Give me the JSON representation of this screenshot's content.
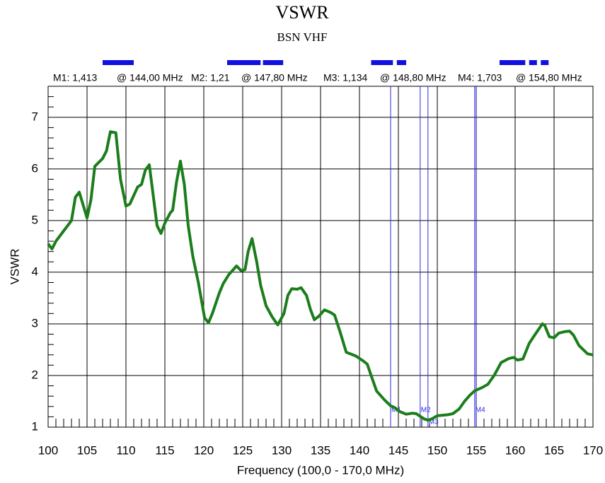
{
  "chart_data": {
    "type": "line",
    "title": "VSWR",
    "subtitle": "BSN  VHF",
    "x_label": "Frequency (100,0 - 170,0 MHz)",
    "y_label": "VSWR",
    "xlim": [
      100,
      170
    ],
    "ylim": [
      1,
      7.6
    ],
    "xticks": [
      100,
      105,
      110,
      115,
      120,
      125,
      130,
      135,
      140,
      145,
      150,
      155,
      160,
      165,
      170
    ],
    "yticks": [
      1,
      2,
      3,
      4,
      5,
      6,
      7
    ],
    "grid": true,
    "bands": [
      [
        107,
        111
      ],
      [
        123,
        127.3
      ],
      [
        127.6,
        130.2
      ],
      [
        141.5,
        144.3
      ],
      [
        144.8,
        146
      ],
      [
        158,
        161.3
      ],
      [
        161.8,
        162.8
      ],
      [
        163.3,
        164.3
      ]
    ],
    "band_color": "#1010e0",
    "marker_color": "#2a2ae0",
    "markers": [
      {
        "name": "M1",
        "label": "M1: 1,413",
        "freq_label": "@ 144,00 MHz",
        "x": 144,
        "value": 1.413
      },
      {
        "name": "M2",
        "label": "M2: 1,21",
        "freq_label": "@ 147,80 MHz",
        "x": 147.8,
        "value": 1.21
      },
      {
        "name": "M3",
        "label": "M3: 1,134",
        "freq_label": "@ 148,80 MHz",
        "x": 148.8,
        "value": 1.134
      },
      {
        "name": "M4",
        "label": "M4: 1,703",
        "freq_label": "@ 154,80 MHz",
        "x": 154.8,
        "value": 1.703
      }
    ],
    "series": [
      {
        "name": "VSWR",
        "color": "#1b7d1b",
        "x": [
          100,
          100.5,
          101,
          102,
          103,
          103.5,
          104,
          105,
          105.5,
          106,
          107,
          107.5,
          108,
          108.7,
          109.3,
          110,
          110.5,
          111.5,
          112,
          112.5,
          113,
          114,
          114.5,
          115,
          115.7,
          116,
          116.5,
          117,
          117.5,
          118,
          118.6,
          119.3,
          120.1,
          120.6,
          121.1,
          122,
          122.5,
          123.2,
          124.2,
          124.8,
          125.3,
          125.7,
          126.2,
          126.8,
          127.3,
          128,
          128.8,
          129.5,
          130.3,
          130.8,
          131.3,
          132,
          132.5,
          133.2,
          133.7,
          134.2,
          134.8,
          135.5,
          136.3,
          136.8,
          137.5,
          138.3,
          139.5,
          140.5,
          141,
          141.5,
          142.2,
          143.2,
          144,
          144.5,
          145.2,
          146,
          146.8,
          147.3,
          147.8,
          148.3,
          148.8,
          149.3,
          150,
          151.3,
          152,
          152.8,
          153.5,
          154.2,
          154.8,
          155.8,
          156.5,
          157.3,
          158.2,
          159.2,
          159.8,
          160.3,
          161,
          161.8,
          162.5,
          163.5,
          163.8,
          164.4,
          165,
          165.6,
          166.4,
          167,
          167.5,
          168.2,
          169.3,
          170
        ],
        "values": [
          4.55,
          4.45,
          4.6,
          4.8,
          5.0,
          5.45,
          5.55,
          5.05,
          5.4,
          6.05,
          6.2,
          6.35,
          6.72,
          6.7,
          5.8,
          5.28,
          5.32,
          5.65,
          5.7,
          5.98,
          6.08,
          4.9,
          4.75,
          4.95,
          5.15,
          5.2,
          5.75,
          6.15,
          5.7,
          4.9,
          4.3,
          3.8,
          3.12,
          3.02,
          3.2,
          3.6,
          3.78,
          3.95,
          4.12,
          4.03,
          4.05,
          4.4,
          4.65,
          4.2,
          3.75,
          3.35,
          3.13,
          2.98,
          3.2,
          3.55,
          3.68,
          3.67,
          3.7,
          3.55,
          3.28,
          3.08,
          3.15,
          3.27,
          3.22,
          3.17,
          2.85,
          2.45,
          2.38,
          2.28,
          2.22,
          2.0,
          1.7,
          1.53,
          1.413,
          1.38,
          1.3,
          1.25,
          1.27,
          1.26,
          1.21,
          1.16,
          1.134,
          1.16,
          1.22,
          1.24,
          1.26,
          1.35,
          1.5,
          1.62,
          1.703,
          1.77,
          1.83,
          2.0,
          2.25,
          2.33,
          2.35,
          2.3,
          2.32,
          2.62,
          2.78,
          3.0,
          2.97,
          2.75,
          2.73,
          2.82,
          2.85,
          2.86,
          2.78,
          2.58,
          2.42,
          2.4
        ]
      }
    ]
  }
}
